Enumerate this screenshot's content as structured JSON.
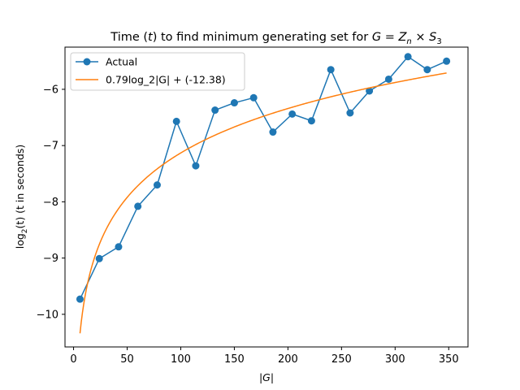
{
  "chart_data": {
    "type": "line",
    "title_parts": {
      "prefix": "Time (",
      "t": "t",
      "middle": ") to find minimum generating set for ",
      "G": "G",
      "eq": " = ",
      "Z": "Z",
      "n": "n",
      "times": " × ",
      "S": "S",
      "three": "3"
    },
    "xlabel": {
      "open": "|",
      "G": "G",
      "close": "|"
    },
    "ylabel": {
      "log": "log",
      "sub": "2",
      "rest": "(t) (t in seconds)"
    },
    "xlim": [
      -8,
      368
    ],
    "ylim": [
      -10.58,
      -5.25
    ],
    "xticks": [
      0,
      50,
      100,
      150,
      200,
      250,
      300,
      350
    ],
    "yticks": [
      -10,
      -9,
      -8,
      -7,
      -6
    ],
    "legend_position": "upper-left",
    "series": [
      {
        "name": "Actual",
        "color": "#1f77b4",
        "marker": "circle",
        "points": [
          [
            6,
            -9.73
          ],
          [
            24,
            -9.01
          ],
          [
            42,
            -8.8
          ],
          [
            60,
            -8.08
          ],
          [
            78,
            -7.7
          ],
          [
            96,
            -6.57
          ],
          [
            114,
            -7.36
          ],
          [
            132,
            -6.37
          ],
          [
            150,
            -6.24
          ],
          [
            168,
            -6.15
          ],
          [
            186,
            -6.76
          ],
          [
            204,
            -6.44
          ],
          [
            222,
            -6.56
          ],
          [
            240,
            -5.65
          ],
          [
            258,
            -6.42
          ],
          [
            276,
            -6.03
          ],
          [
            294,
            -5.82
          ],
          [
            312,
            -5.42
          ],
          [
            330,
            -5.65
          ],
          [
            348,
            -5.5
          ]
        ]
      },
      {
        "name": "0.79log_2|G| + (-12.38)",
        "color": "#ff7f0e",
        "marker": "none",
        "fit": {
          "a": 0.79,
          "b": -12.38,
          "x_start": 6,
          "x_end": 348
        }
      }
    ]
  }
}
